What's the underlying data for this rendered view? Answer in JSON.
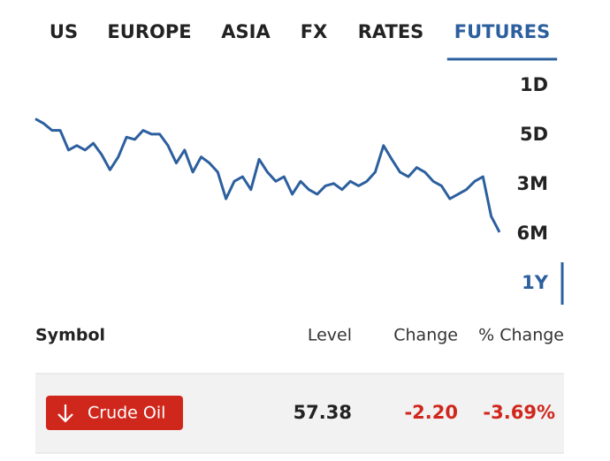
{
  "tabs": [
    {
      "label": "US",
      "active": false
    },
    {
      "label": "EUROPE",
      "active": false
    },
    {
      "label": "ASIA",
      "active": false
    },
    {
      "label": "FX",
      "active": false
    },
    {
      "label": "RATES",
      "active": false
    },
    {
      "label": "FUTURES",
      "active": true
    }
  ],
  "ranges": [
    {
      "label": "1D",
      "active": false
    },
    {
      "label": "5D",
      "active": false
    },
    {
      "label": "3M",
      "active": false
    },
    {
      "label": "6M",
      "active": false
    },
    {
      "label": "1Y",
      "active": true
    }
  ],
  "chart_data": {
    "type": "line",
    "color": "#2c5f9e",
    "ylim": [
      56,
      74
    ],
    "values": [
      72.3,
      71.7,
      70.8,
      70.8,
      68.2,
      68.8,
      68.2,
      69.1,
      67.6,
      65.6,
      67.3,
      69.9,
      69.6,
      70.8,
      70.3,
      70.3,
      68.8,
      66.5,
      68.2,
      65.3,
      67.3,
      66.5,
      65.3,
      61.8,
      64.1,
      64.7,
      63.0,
      67.0,
      65.3,
      64.1,
      64.7,
      62.4,
      64.1,
      63.0,
      62.4,
      63.5,
      63.8,
      63.0,
      64.1,
      63.5,
      64.1,
      65.3,
      68.8,
      67.0,
      65.3,
      64.7,
      65.9,
      65.3,
      64.1,
      63.5,
      61.8,
      62.4,
      63.0,
      64.1,
      64.7,
      59.5,
      57.4
    ]
  },
  "table": {
    "headers": [
      "Symbol",
      "Level",
      "Change",
      "% Change"
    ],
    "rows": [
      {
        "symbol": "Crude Oil",
        "level": "57.38",
        "change": "-2.20",
        "pct_change": "-3.69%"
      }
    ]
  }
}
